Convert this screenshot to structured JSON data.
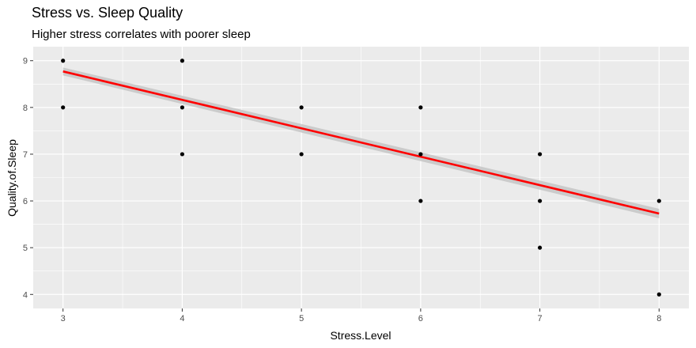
{
  "chart_data": {
    "type": "scatter",
    "title": "Stress vs. Sleep Quality",
    "subtitle": "Higher stress correlates with poorer sleep",
    "xlabel": "Stress.Level",
    "ylabel": "Quality.of.Sleep",
    "xlim": [
      2.75,
      8.25
    ],
    "ylim": [
      3.7,
      9.3
    ],
    "x_ticks": [
      3,
      4,
      5,
      6,
      7,
      8
    ],
    "y_ticks": [
      4,
      5,
      6,
      7,
      8,
      9
    ],
    "points": [
      {
        "x": 3,
        "y": 9
      },
      {
        "x": 3,
        "y": 8
      },
      {
        "x": 4,
        "y": 9
      },
      {
        "x": 4,
        "y": 8
      },
      {
        "x": 4,
        "y": 7
      },
      {
        "x": 5,
        "y": 8
      },
      {
        "x": 5,
        "y": 7
      },
      {
        "x": 6,
        "y": 8
      },
      {
        "x": 6,
        "y": 7
      },
      {
        "x": 6,
        "y": 6
      },
      {
        "x": 7,
        "y": 7
      },
      {
        "x": 7,
        "y": 6
      },
      {
        "x": 7,
        "y": 5
      },
      {
        "x": 8,
        "y": 6
      },
      {
        "x": 8,
        "y": 4
      }
    ],
    "trend_line": {
      "x": [
        3,
        8
      ],
      "y": [
        8.77,
        5.73
      ]
    },
    "grid": true,
    "colors": {
      "panel": "#ebebeb",
      "grid": "#ffffff",
      "points": "#000000",
      "trend": "#ff0000",
      "band": "#c8c8c8"
    }
  }
}
